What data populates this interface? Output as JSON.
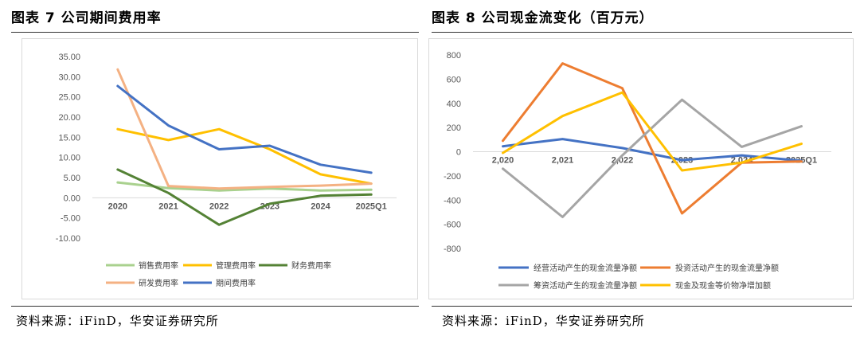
{
  "left": {
    "title": "图表 7 公司期间费用率",
    "source": "资料来源：iFinD，华安证券研究所"
  },
  "right": {
    "title": "图表 8 公司现金流变化（百万元）",
    "source": "资料来源：iFinD，华安证券研究所"
  },
  "chart_data": [
    {
      "type": "line",
      "title": "",
      "xlabel": "",
      "ylabel": "",
      "categories": [
        "2020",
        "2021",
        "2022",
        "2023",
        "2024",
        "2025Q1"
      ],
      "ylim": [
        -10,
        35
      ],
      "yticks": [
        35,
        30,
        25,
        20,
        15,
        10,
        5,
        0,
        -5,
        -10
      ],
      "ytick_labels": [
        "35.00",
        "30.00",
        "25.00",
        "20.00",
        "15.00",
        "10.00",
        "5.00",
        "0.00",
        "-5.00",
        "-10.00"
      ],
      "grid": false,
      "legend_position": "bottom",
      "series": [
        {
          "name": "销售费用率",
          "color": "#a9d18e",
          "values": [
            3.8,
            2.4,
            1.8,
            2.3,
            1.8,
            2.0
          ]
        },
        {
          "name": "管理费用率",
          "color": "#ffc000",
          "values": [
            17.0,
            14.3,
            17.0,
            12.0,
            5.8,
            3.5
          ]
        },
        {
          "name": "财务费用率",
          "color": "#548235",
          "values": [
            7.0,
            1.2,
            -6.7,
            -1.5,
            0.5,
            0.8
          ]
        },
        {
          "name": "研发费用率",
          "color": "#f4b183",
          "values": [
            31.8,
            2.9,
            2.3,
            2.7,
            3.0,
            3.5
          ]
        },
        {
          "name": "期间费用率",
          "color": "#4472c4",
          "values": [
            27.7,
            17.9,
            12.0,
            12.9,
            8.2,
            6.2
          ]
        }
      ]
    },
    {
      "type": "line",
      "title": "",
      "xlabel": "",
      "ylabel": "",
      "categories": [
        "2,020",
        "2,021",
        "2,022",
        "2,023",
        "2,024",
        "2025Q1"
      ],
      "ylim": [
        -800,
        800
      ],
      "yticks": [
        800,
        600,
        400,
        200,
        0,
        -200,
        -400,
        -600,
        -800
      ],
      "ytick_labels": [
        "800",
        "600",
        "400",
        "200",
        "0",
        "-200",
        "-400",
        "-600",
        "-800"
      ],
      "grid": false,
      "legend_position": "bottom",
      "series": [
        {
          "name": "经营活动产生的现金流量净额",
          "color": "#4472c4",
          "values": [
            45,
            105,
            30,
            -70,
            -30,
            -75
          ]
        },
        {
          "name": "投资活动产生的现金流量净额",
          "color": "#ed7d31",
          "values": [
            90,
            730,
            525,
            -510,
            -90,
            -80
          ]
        },
        {
          "name": "筹资活动产生的现金流量净额",
          "color": "#a5a5a5",
          "values": [
            -140,
            -540,
            -30,
            430,
            40,
            210
          ]
        },
        {
          "name": "现金及现金等价物净增加额",
          "color": "#ffc000",
          "values": [
            -10,
            295,
            490,
            -155,
            -90,
            65
          ]
        }
      ]
    }
  ]
}
